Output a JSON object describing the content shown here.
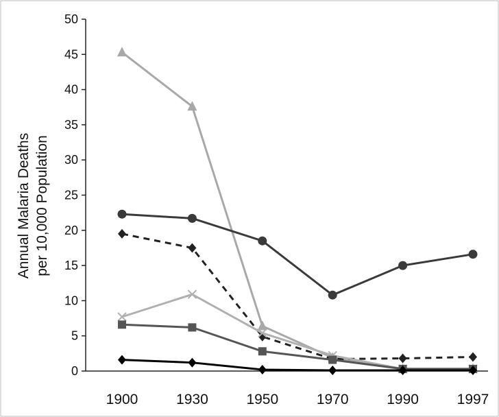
{
  "chart_data": {
    "type": "line",
    "title": "",
    "xlabel": "",
    "ylabel_line1": "Annual Malaria Deaths",
    "ylabel_line2": "per 10,000 Population",
    "categories": [
      "1900",
      "1930",
      "1950",
      "1970",
      "1990",
      "1997"
    ],
    "ylim": [
      0,
      50
    ],
    "yticks": [
      0,
      5,
      10,
      15,
      20,
      25,
      30,
      35,
      40,
      45,
      50
    ],
    "grid": false,
    "legend": "none",
    "series": [
      {
        "values": [
          45.3,
          37.6,
          6.4,
          1.9,
          0.3,
          0.3
        ],
        "color": "#a8a8a8",
        "marker": "triangle",
        "dash": false
      },
      {
        "values": [
          22.3,
          21.7,
          18.5,
          10.8,
          15.0,
          16.6
        ],
        "color": "#3a3a3a",
        "marker": "circle",
        "dash": false
      },
      {
        "values": [
          19.5,
          17.5,
          4.9,
          1.7,
          1.8,
          2.0
        ],
        "color": "#222222",
        "marker": "diamond",
        "dash": true
      },
      {
        "values": [
          7.7,
          10.9,
          5.4,
          2.2,
          0.3,
          0.3
        ],
        "color": "#b0b0b0",
        "marker": "x",
        "dash": false
      },
      {
        "values": [
          6.6,
          6.2,
          2.8,
          1.6,
          0.3,
          0.3
        ],
        "color": "#555555",
        "marker": "square",
        "dash": false
      },
      {
        "values": [
          1.6,
          1.2,
          0.2,
          0.1,
          0.1,
          0.1
        ],
        "color": "#000000",
        "marker": "diamond",
        "dash": false
      }
    ]
  }
}
